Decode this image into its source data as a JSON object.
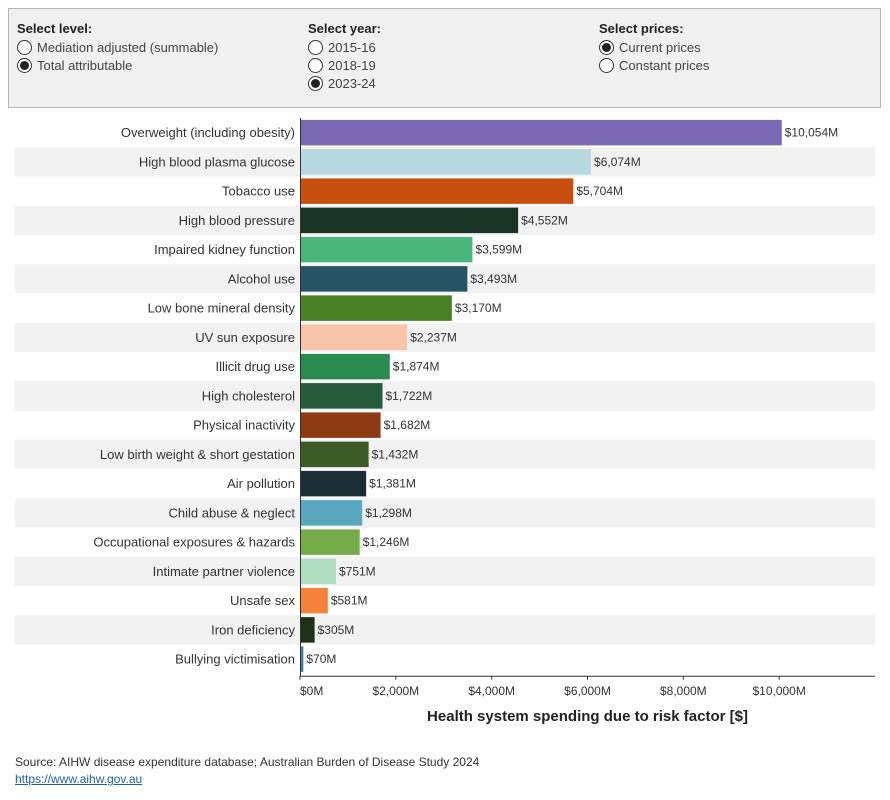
{
  "filters": {
    "level": {
      "title": "Select level:",
      "options": [
        "Mediation adjusted (summable)",
        "Total attributable"
      ],
      "selected": 1
    },
    "year": {
      "title": "Select year:",
      "options": [
        "2015-16",
        "2018-19",
        "2023-24"
      ],
      "selected": 2
    },
    "prices": {
      "title": "Select prices:",
      "options": [
        "Current prices",
        "Constant prices"
      ],
      "selected": 0
    }
  },
  "chart_data": {
    "type": "bar",
    "orientation": "horizontal",
    "title": "",
    "xlabel": "Health system spending due to risk factor [$]",
    "ylabel": "",
    "xlim": [
      0,
      12000
    ],
    "x_ticks": [
      0,
      2000,
      4000,
      6000,
      8000,
      10000
    ],
    "x_tick_labels": [
      "$0M",
      "$2,000M",
      "$4,000M",
      "$6,000M",
      "$8,000M",
      "$10,000M"
    ],
    "grid": false,
    "alternating_row_bands": true,
    "categories": [
      "Overweight (including obesity)",
      "High blood plasma glucose",
      "Tobacco use",
      "High blood pressure",
      "Impaired kidney function",
      "Alcohol use",
      "Low bone mineral density",
      "UV sun exposure",
      "Illicit drug use",
      "High cholesterol",
      "Physical inactivity",
      "Low birth weight & short gestation",
      "Air pollution",
      "Child abuse & neglect",
      "Occupational exposures & hazards",
      "Intimate partner violence",
      "Unsafe sex",
      "Iron deficiency",
      "Bullying victimisation"
    ],
    "values": [
      10054,
      6074,
      5704,
      4552,
      3599,
      3493,
      3170,
      2237,
      1874,
      1722,
      1682,
      1432,
      1381,
      1298,
      1246,
      751,
      581,
      305,
      70
    ],
    "value_labels": [
      "$10,054M",
      "$6,074M",
      "$5,704M",
      "$4,552M",
      "$3,599M",
      "$3,493M",
      "$3,170M",
      "$2,237M",
      "$1,874M",
      "$1,722M",
      "$1,682M",
      "$1,432M",
      "$1,381M",
      "$1,298M",
      "$1,246M",
      "$751M",
      "$581M",
      "$305M",
      "$70M"
    ],
    "colors": [
      "#7b68b5",
      "#b8d8e0",
      "#c9500c",
      "#1a3526",
      "#4ab67a",
      "#275463",
      "#4b8126",
      "#f8c4a9",
      "#2a8a50",
      "#255a3a",
      "#8e3a12",
      "#3a5b25",
      "#1b2e35",
      "#5ba7c0",
      "#74ad47",
      "#b0dcc0",
      "#f4823a",
      "#1d3214",
      "#3c7fa2"
    ]
  },
  "source": {
    "text": "Source:  AIHW disease expenditure database; Australian Burden of Disease Study 2024",
    "link": "https://www.aihw.gov.au"
  }
}
